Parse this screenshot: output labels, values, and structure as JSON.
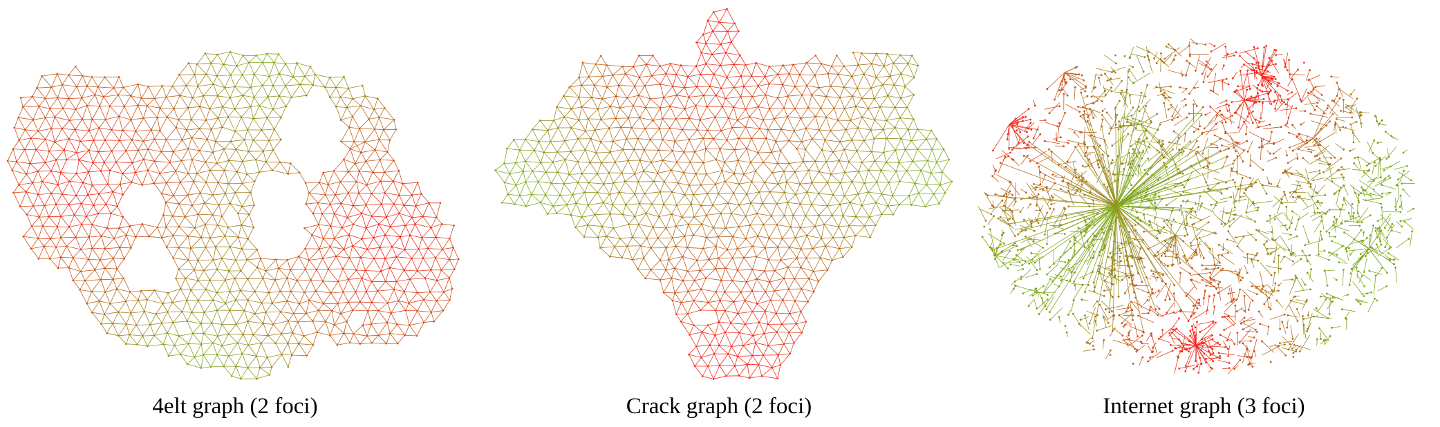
{
  "colors": {
    "focus": "#ff1a1a",
    "far": "#7faa1e",
    "node": "#6b8a12"
  },
  "panels": [
    {
      "caption": "4elt graph (2 foci)",
      "kind": "mesh-4elt"
    },
    {
      "caption": "Crack graph (2 foci)",
      "kind": "mesh-crack"
    },
    {
      "caption": "Internet graph (3 foci)",
      "kind": "internet"
    }
  ]
}
